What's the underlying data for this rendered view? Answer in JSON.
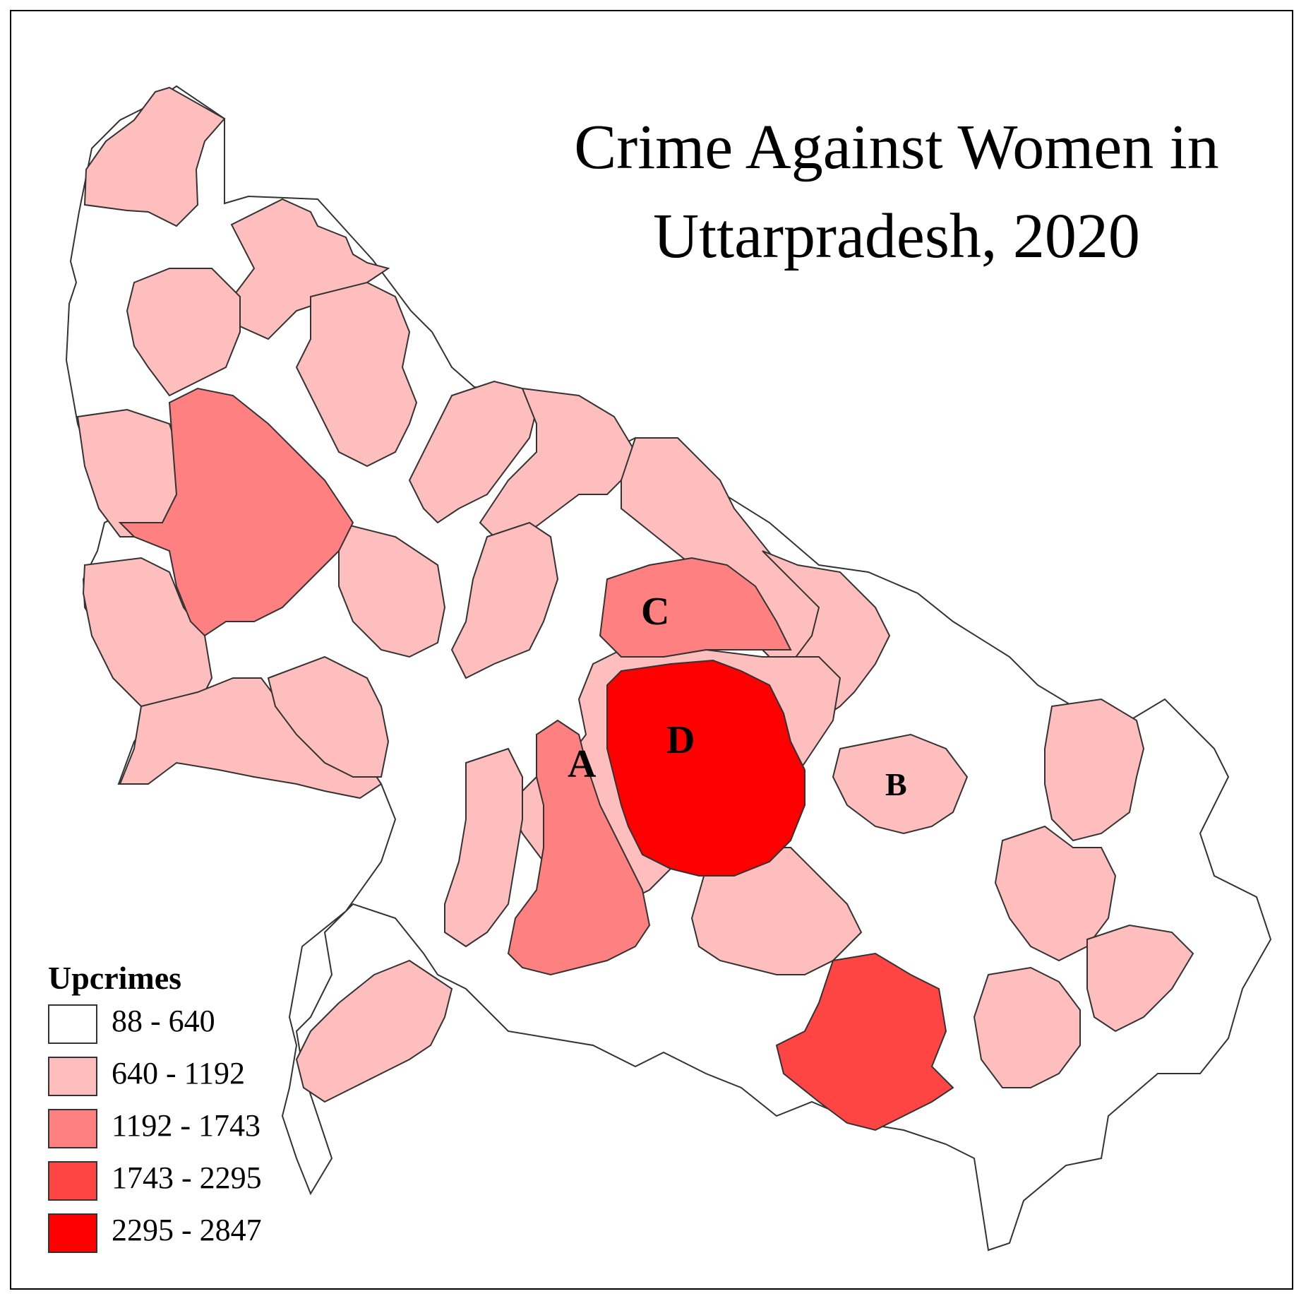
{
  "title": {
    "line1": "Crime Against Women in",
    "line2": "Uttarpradesh, 2020"
  },
  "legend": {
    "title": "Upcrimes",
    "classes": [
      {
        "label": "88 - 640",
        "color": "#ffffff"
      },
      {
        "label": "640 - 1192",
        "color": "#ffbebe"
      },
      {
        "label": "1192 - 1743",
        "color": "#ff8080"
      },
      {
        "label": "1743 - 2295",
        "color": "#ff4444"
      },
      {
        "label": "2295 - 2847",
        "color": "#ff0000"
      }
    ]
  },
  "region_labels": {
    "a": "A",
    "b": "B",
    "c": "C",
    "d": "D"
  },
  "colors": {
    "border": "#333333",
    "frame": "#000000"
  }
}
